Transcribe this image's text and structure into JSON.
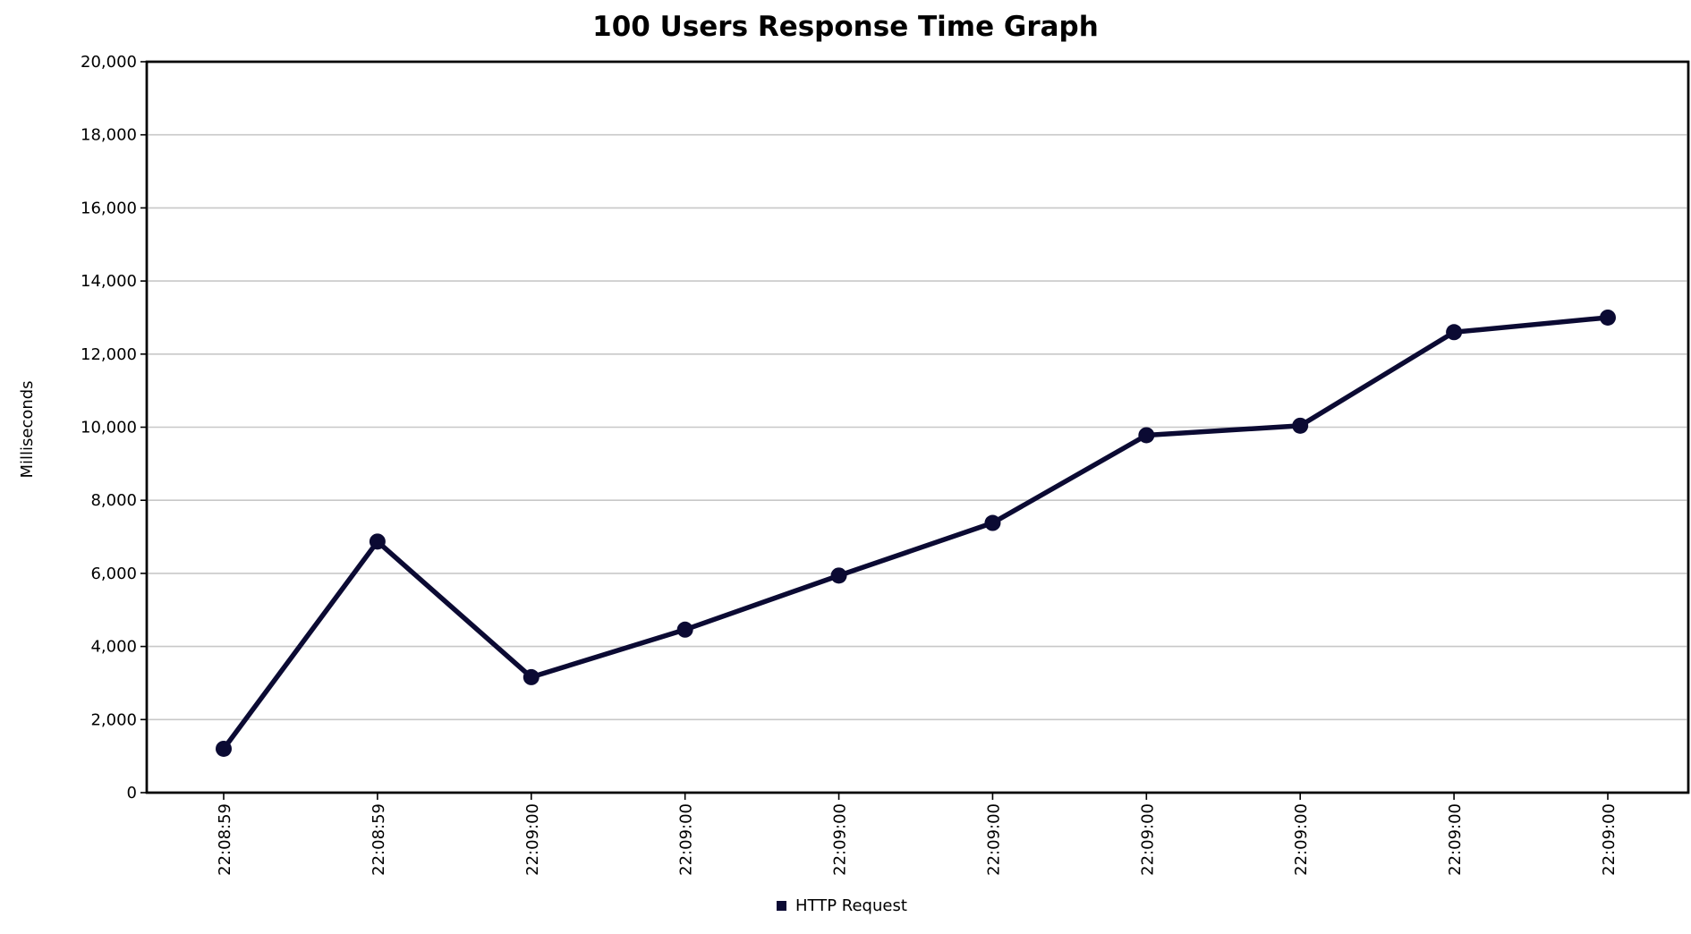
{
  "chart_data": {
    "type": "line",
    "title": "100 Users Response Time Graph",
    "xlabel": "",
    "ylabel": "Milliseconds",
    "categories": [
      "22:08:59",
      "22:08:59",
      "22:09:00",
      "22:09:00",
      "22:09:00",
      "22:09:00",
      "22:09:00",
      "22:09:00",
      "22:09:00",
      "22:09:00"
    ],
    "series": [
      {
        "name": "HTTP Request",
        "values": [
          1200,
          6870,
          3160,
          4460,
          5940,
          7380,
          9780,
          10040,
          12600,
          13000
        ],
        "color": "#0b0a33"
      }
    ],
    "ylim": [
      0,
      20000
    ],
    "yticks": [
      0,
      2000,
      4000,
      6000,
      8000,
      10000,
      12000,
      14000,
      16000,
      18000,
      20000
    ],
    "ytick_labels": [
      "0",
      "2,000",
      "4,000",
      "6,000",
      "8,000",
      "10,000",
      "12,000",
      "14,000",
      "16,000",
      "18,000",
      "20,000"
    ],
    "grid": true,
    "legend_position": "bottom-center"
  }
}
